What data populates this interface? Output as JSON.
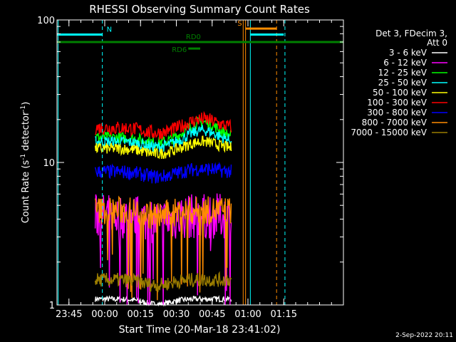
{
  "chart_data": {
    "type": "line",
    "title": "RHESSI Observing Summary Count Rates",
    "xlabel": "Start Time (20-Mar-18 23:41:02)",
    "ylabel": "Count Rate (s",
    "ylabel_sup1": "-1",
    "ylabel_mid": " detector",
    "ylabel_sup2": "-1",
    "ylabel_end": ")",
    "y_scale": "log",
    "ylim": [
      1,
      100
    ],
    "xlim_minutes": [
      -20,
      100
    ],
    "x_ticks": [
      {
        "minute": -15,
        "label": "23:45"
      },
      {
        "minute": 0,
        "label": "00:00"
      },
      {
        "minute": 15,
        "label": "00:15"
      },
      {
        "minute": 30,
        "label": "00:30"
      },
      {
        "minute": 45,
        "label": "00:45"
      },
      {
        "minute": 60,
        "label": "01:00"
      },
      {
        "minute": 75,
        "label": "01:15"
      }
    ],
    "y_ticks": [
      {
        "value": 1,
        "label": "1"
      },
      {
        "value": 10,
        "label": "10"
      },
      {
        "value": 100,
        "label": "100"
      }
    ],
    "legend_header": [
      "Det 3, FDecim 3,",
      "Att 0"
    ],
    "legend_placement": "right",
    "data_window_minutes": [
      -4,
      53
    ],
    "series": [
      {
        "name": "3 - 6 keV",
        "color": "#ffffff",
        "level": 1.1,
        "noise": 0.02,
        "hump": 0
      },
      {
        "name": "6 - 12 keV",
        "color": "#ff00ff",
        "level": 4.2,
        "noise": 0.16,
        "hump": 0
      },
      {
        "name": "12 - 25 keV",
        "color": "#00ff00",
        "level": 15.0,
        "noise": 0.04,
        "hump": 0.28
      },
      {
        "name": "25 - 50 keV",
        "color": "#00ffff",
        "level": 14.0,
        "noise": 0.04,
        "hump": 0.2
      },
      {
        "name": "50 - 100 keV",
        "color": "#ffff00",
        "level": 12.5,
        "noise": 0.04,
        "hump": 0.12
      },
      {
        "name": "100 - 300 keV",
        "color": "#ff0000",
        "level": 17.5,
        "noise": 0.05,
        "hump": 0.15
      },
      {
        "name": "300 - 800 keV",
        "color": "#0000ff",
        "level": 8.6,
        "noise": 0.05,
        "hump": 0.05
      },
      {
        "name": "800 - 7000 keV",
        "color": "#ff8c00",
        "level": 4.6,
        "noise": 0.1,
        "hump": 0
      },
      {
        "name": "7000 - 15000 keV",
        "color": "#9b7d00",
        "level": 1.5,
        "noise": 0.05,
        "hump": 0
      }
    ],
    "flags": [
      {
        "label": "N",
        "color": "#00ffff",
        "start": -20,
        "end": -1,
        "level": 79
      },
      {
        "label": "",
        "color": "#00ffff",
        "start": 61,
        "end": 75,
        "level": 79
      },
      {
        "label": "RD0",
        "color": "#008000",
        "start": -20,
        "end": 100,
        "level": 70
      },
      {
        "label": "RD6",
        "color": "#008000",
        "start": 35,
        "end": 40,
        "level": 63
      },
      {
        "label": "S",
        "color": "#ff8c00",
        "start": 59,
        "end": 72,
        "level": 87
      }
    ],
    "vertical_lines": [
      {
        "minute": -19.5,
        "color": "#00ffff",
        "style": "solid"
      },
      {
        "minute": -1,
        "color": "#00ffff",
        "style": "dashed"
      },
      {
        "minute": 58,
        "color": "#ff8c00",
        "style": "solid"
      },
      {
        "minute": 59,
        "color": "#ff8c00",
        "style": "solid"
      },
      {
        "minute": 61,
        "color": "#00ffff",
        "style": "solid"
      },
      {
        "minute": 72,
        "color": "#ff8c00",
        "style": "dashed"
      },
      {
        "minute": 75.5,
        "color": "#00ffff",
        "style": "dashed"
      }
    ],
    "footer_date": "2-Sep-2022 20:11"
  }
}
